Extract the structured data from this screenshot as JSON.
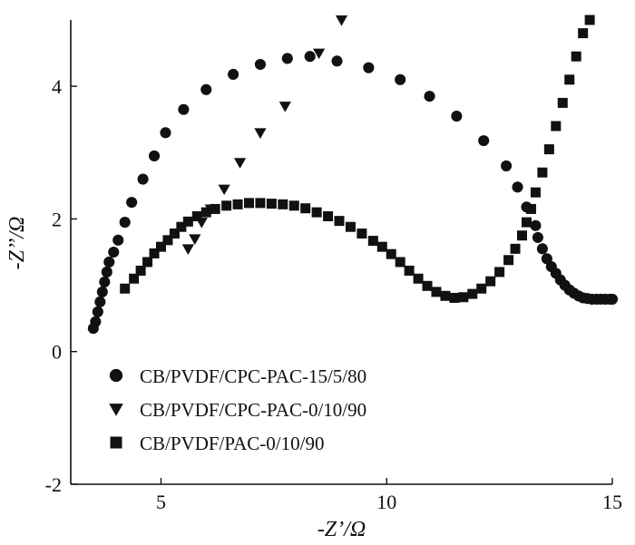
{
  "chart_data": {
    "type": "scatter",
    "xlabel": "-Z’/Ω",
    "ylabel": "-Z’’/Ω",
    "xlim": [
      3,
      15
    ],
    "ylim": [
      -2,
      5
    ],
    "xticks": [
      5,
      10,
      15
    ],
    "yticks": [
      -2,
      0,
      2,
      4
    ],
    "xtick_labels": [
      "5",
      "10",
      "15"
    ],
    "ytick_labels": [
      "-2",
      "0",
      "2",
      "4"
    ],
    "grid": false,
    "legend_position": "lower-left",
    "series": [
      {
        "name": "CB/PVDF/CPC-PAC-15/5/80",
        "marker": "circle",
        "x": [
          3.5,
          3.55,
          3.6,
          3.65,
          3.7,
          3.75,
          3.8,
          3.85,
          3.95,
          4.05,
          4.2,
          4.35,
          4.6,
          4.85,
          5.1,
          5.5,
          6.0,
          6.6,
          7.2,
          7.8,
          8.3,
          8.9,
          9.6,
          10.3,
          10.95,
          11.55,
          12.15,
          12.65,
          12.9,
          13.1,
          13.3,
          13.35,
          13.45,
          13.55,
          13.65,
          13.75,
          13.85,
          13.95,
          14.05,
          14.15,
          14.25,
          14.35,
          14.45,
          14.55,
          14.65,
          14.75,
          14.85,
          14.95,
          15.0
        ],
        "y": [
          0.35,
          0.45,
          0.6,
          0.75,
          0.9,
          1.05,
          1.2,
          1.35,
          1.5,
          1.68,
          1.95,
          2.25,
          2.6,
          2.95,
          3.3,
          3.65,
          3.95,
          4.18,
          4.33,
          4.42,
          4.45,
          4.38,
          4.28,
          4.1,
          3.85,
          3.55,
          3.18,
          2.8,
          2.48,
          2.18,
          1.9,
          1.72,
          1.55,
          1.4,
          1.28,
          1.18,
          1.08,
          1.0,
          0.93,
          0.88,
          0.84,
          0.81,
          0.8,
          0.79,
          0.79,
          0.79,
          0.79,
          0.79,
          0.79
        ]
      },
      {
        "name": "CB/PVDF/CPC-PAC-0/10/90",
        "marker": "triangle-down",
        "x": [
          5.6,
          5.75,
          5.9,
          6.1,
          6.4,
          6.75,
          7.2,
          7.75,
          8.5,
          9.0
        ],
        "y": [
          1.55,
          1.7,
          1.95,
          2.15,
          2.45,
          2.85,
          3.3,
          3.7,
          4.5,
          5.0
        ]
      },
      {
        "name": "CB/PVDF/PAC-0/10/90",
        "marker": "square",
        "x": [
          4.2,
          4.4,
          4.55,
          4.7,
          4.85,
          5.0,
          5.15,
          5.3,
          5.45,
          5.6,
          5.8,
          6.0,
          6.2,
          6.45,
          6.7,
          6.95,
          7.2,
          7.45,
          7.7,
          7.95,
          8.2,
          8.45,
          8.7,
          8.95,
          9.2,
          9.45,
          9.7,
          9.9,
          10.1,
          10.3,
          10.5,
          10.7,
          10.9,
          11.1,
          11.3,
          11.5,
          11.7,
          11.9,
          12.1,
          12.3,
          12.5,
          12.7,
          12.85,
          13.0,
          13.1,
          13.2,
          13.3,
          13.45,
          13.6,
          13.75,
          13.9,
          14.05,
          14.2,
          14.35,
          14.5
        ],
        "y": [
          0.95,
          1.1,
          1.22,
          1.35,
          1.48,
          1.58,
          1.68,
          1.78,
          1.88,
          1.96,
          2.04,
          2.1,
          2.15,
          2.2,
          2.22,
          2.24,
          2.24,
          2.23,
          2.22,
          2.2,
          2.16,
          2.1,
          2.04,
          1.97,
          1.88,
          1.78,
          1.67,
          1.58,
          1.47,
          1.35,
          1.22,
          1.1,
          0.99,
          0.9,
          0.84,
          0.81,
          0.82,
          0.87,
          0.95,
          1.06,
          1.2,
          1.38,
          1.55,
          1.75,
          1.95,
          2.15,
          2.4,
          2.7,
          3.05,
          3.4,
          3.75,
          4.1,
          4.45,
          4.8,
          5.0
        ]
      }
    ]
  }
}
